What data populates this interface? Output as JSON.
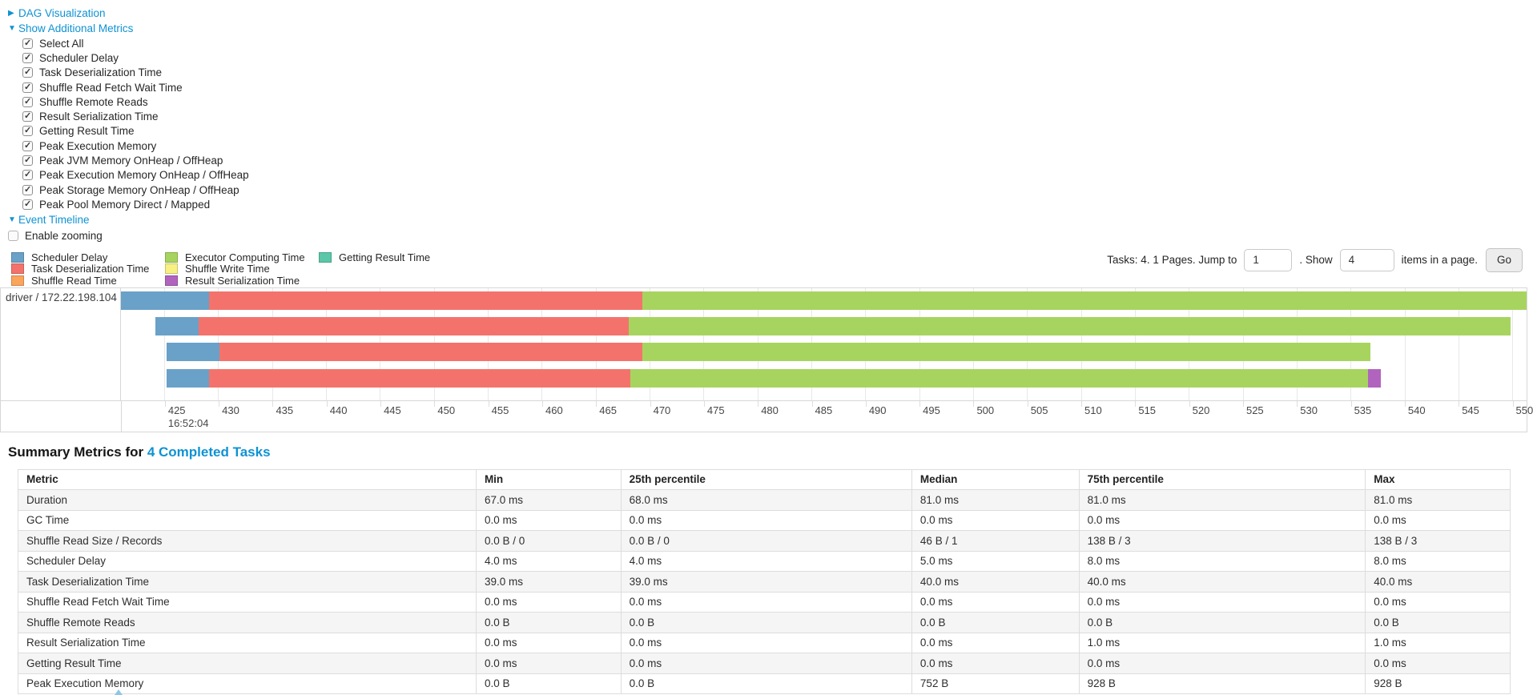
{
  "colors": {
    "link": "#0e92d4",
    "stripe": "#f5f5f5",
    "table_border": "#dddddd"
  },
  "nav": {
    "dag": {
      "label": "DAG Visualization",
      "state": "collapsed"
    },
    "metrics_toggle": {
      "label": "Show Additional Metrics",
      "state": "expanded"
    },
    "checkboxes": [
      {
        "label": "Select All",
        "checked": true
      },
      {
        "label": "Scheduler Delay",
        "checked": true
      },
      {
        "label": "Task Deserialization Time",
        "checked": true
      },
      {
        "label": "Shuffle Read Fetch Wait Time",
        "checked": true
      },
      {
        "label": "Shuffle Remote Reads",
        "checked": true
      },
      {
        "label": "Result Serialization Time",
        "checked": true
      },
      {
        "label": "Getting Result Time",
        "checked": true
      },
      {
        "label": "Peak Execution Memory",
        "checked": true
      },
      {
        "label": "Peak JVM Memory OnHeap / OffHeap",
        "checked": true
      },
      {
        "label": "Peak Execution Memory OnHeap / OffHeap",
        "checked": true
      },
      {
        "label": "Peak Storage Memory OnHeap / OffHeap",
        "checked": true
      },
      {
        "label": "Peak Pool Memory Direct / Mapped",
        "checked": true
      }
    ],
    "event_timeline": {
      "label": "Event Timeline",
      "state": "expanded"
    },
    "enable_zooming": {
      "label": "Enable zooming",
      "checked": false
    }
  },
  "legend": {
    "columns": [
      [
        {
          "key": "scheduler_delay",
          "label": "Scheduler Delay"
        },
        {
          "key": "task_deserialization",
          "label": "Task Deserialization Time"
        },
        {
          "key": "shuffle_read",
          "label": "Shuffle Read Time"
        }
      ],
      [
        {
          "key": "executor_computing",
          "label": "Executor Computing Time"
        },
        {
          "key": "shuffle_write",
          "label": "Shuffle Write Time"
        },
        {
          "key": "result_serialization",
          "label": "Result Serialization Time"
        }
      ],
      [
        {
          "key": "getting_result",
          "label": "Getting Result Time"
        }
      ]
    ]
  },
  "pagination": {
    "prefix": "Tasks: 4. 1 Pages. Jump to",
    "jump_value": "1",
    "show_label": ". Show",
    "show_value": "4",
    "suffix": "items in a page.",
    "go_label": "Go"
  },
  "chart_data": {
    "type": "timeline",
    "row_label": "driver / 172.22.198.104",
    "axis_min": 421.0,
    "axis_max": 551.3,
    "ticks": [
      425,
      430,
      435,
      440,
      445,
      450,
      455,
      460,
      465,
      470,
      475,
      480,
      485,
      490,
      495,
      500,
      505,
      510,
      515,
      520,
      525,
      530,
      535,
      540,
      545,
      550
    ],
    "major_label": "16:52:04",
    "major_tick": 425,
    "colors": {
      "scheduler_delay": "#69a1c9",
      "task_deserialization": "#f3736c",
      "shuffle_read": "#faa45c",
      "executor_computing": "#a7d45f",
      "shuffle_write": "#f7f083",
      "result_serialization": "#b164be",
      "getting_result": "#5ac7a8"
    },
    "bars": [
      {
        "start": 421.0,
        "segments": [
          [
            "scheduler_delay",
            429.2
          ],
          [
            "task_deserialization",
            469.3
          ],
          [
            "executor_computing",
            551.3
          ]
        ]
      },
      {
        "start": 424.2,
        "segments": [
          [
            "scheduler_delay",
            428.2
          ],
          [
            "task_deserialization",
            468.1
          ],
          [
            "executor_computing",
            549.8
          ]
        ]
      },
      {
        "start": 425.2,
        "segments": [
          [
            "scheduler_delay",
            430.1
          ],
          [
            "task_deserialization",
            469.3
          ],
          [
            "executor_computing",
            536.8
          ]
        ]
      },
      {
        "start": 425.2,
        "segments": [
          [
            "scheduler_delay",
            429.2
          ],
          [
            "task_deserialization",
            468.2
          ],
          [
            "executor_computing",
            536.6
          ],
          [
            "result_serialization",
            537.8
          ]
        ]
      }
    ]
  },
  "summary": {
    "title_prefix": "Summary Metrics for ",
    "title_link": "4 Completed Tasks",
    "columns": [
      "Metric",
      "Min",
      "25th percentile",
      "Median",
      "75th percentile",
      "Max"
    ],
    "rows": [
      {
        "metric": "Duration",
        "values": [
          "67.0 ms",
          "68.0 ms",
          "81.0 ms",
          "81.0 ms",
          "81.0 ms"
        ]
      },
      {
        "metric": "GC Time",
        "values": [
          "0.0 ms",
          "0.0 ms",
          "0.0 ms",
          "0.0 ms",
          "0.0 ms"
        ]
      },
      {
        "metric": "Shuffle Read Size / Records",
        "values": [
          "0.0 B / 0",
          "0.0 B / 0",
          "46 B / 1",
          "138 B / 3",
          "138 B / 3"
        ]
      },
      {
        "metric": "Scheduler Delay",
        "values": [
          "4.0 ms",
          "4.0 ms",
          "5.0 ms",
          "8.0 ms",
          "8.0 ms"
        ]
      },
      {
        "metric": "Task Deserialization Time",
        "values": [
          "39.0 ms",
          "39.0 ms",
          "40.0 ms",
          "40.0 ms",
          "40.0 ms"
        ]
      },
      {
        "metric": "Shuffle Read Fetch Wait Time",
        "values": [
          "0.0 ms",
          "0.0 ms",
          "0.0 ms",
          "0.0 ms",
          "0.0 ms"
        ]
      },
      {
        "metric": "Shuffle Remote Reads",
        "values": [
          "0.0 B",
          "0.0 B",
          "0.0 B",
          "0.0 B",
          "0.0 B"
        ]
      },
      {
        "metric": "Result Serialization Time",
        "values": [
          "0.0 ms",
          "0.0 ms",
          "0.0 ms",
          "1.0 ms",
          "1.0 ms"
        ]
      },
      {
        "metric": "Getting Result Time",
        "values": [
          "0.0 ms",
          "0.0 ms",
          "0.0 ms",
          "0.0 ms",
          "0.0 ms"
        ]
      },
      {
        "metric": "Peak Execution Memory",
        "values": [
          "0.0 B",
          "0.0 B",
          "752 B",
          "928 B",
          "928 B"
        ]
      }
    ]
  }
}
